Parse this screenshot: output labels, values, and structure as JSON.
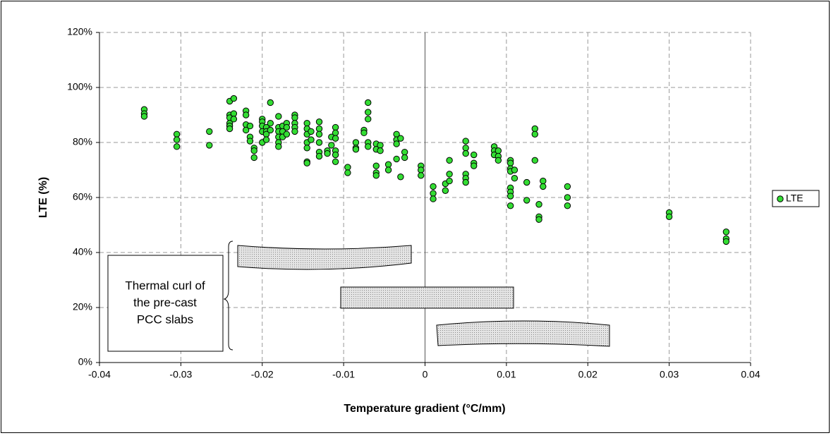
{
  "chart_data": {
    "type": "scatter",
    "x_label": "Temperature gradient (°C/mm)",
    "y_label": "LTE (%)",
    "annotation": [
      "Thermal curl of",
      "the pre-cast",
      "PCC slabs"
    ],
    "xlim": [
      -0.04,
      0.04
    ],
    "xticks": [
      -0.04,
      -0.03,
      -0.02,
      -0.01,
      0,
      0.01,
      0.02,
      0.03,
      0.04
    ],
    "ylim": [
      0,
      120
    ],
    "yticks": [
      {
        "value": 0,
        "label": "0%"
      },
      {
        "value": 20,
        "label": "20%"
      },
      {
        "value": 40,
        "label": "40%"
      },
      {
        "value": 60,
        "label": "60%"
      },
      {
        "value": 80,
        "label": "80%"
      },
      {
        "value": 100,
        "label": "100%"
      },
      {
        "value": 120,
        "label": "120%"
      }
    ],
    "grid": true,
    "legend": "right",
    "series": [
      {
        "name": "LTE",
        "color": "#33dd33",
        "x": [
          -0.0345,
          -0.0345,
          -0.0345,
          -0.0305,
          -0.0305,
          -0.0305,
          -0.0265,
          -0.0265,
          -0.024,
          -0.024,
          -0.024,
          -0.024,
          -0.024,
          -0.024,
          -0.0235,
          -0.0235,
          -0.0235,
          -0.022,
          -0.022,
          -0.022,
          -0.022,
          -0.0215,
          -0.0215,
          -0.0215,
          -0.021,
          -0.021,
          -0.021,
          -0.02,
          -0.02,
          -0.02,
          -0.02,
          -0.02,
          -0.0195,
          -0.0195,
          -0.0195,
          -0.0195,
          -0.019,
          -0.019,
          -0.019,
          -0.018,
          -0.018,
          -0.018,
          -0.018,
          -0.018,
          -0.018,
          -0.0175,
          -0.0175,
          -0.0175,
          -0.017,
          -0.017,
          -0.017,
          -0.016,
          -0.016,
          -0.016,
          -0.016,
          -0.016,
          -0.0145,
          -0.0145,
          -0.0145,
          -0.0145,
          -0.0145,
          -0.0145,
          -0.0145,
          -0.014,
          -0.014,
          -0.013,
          -0.013,
          -0.013,
          -0.013,
          -0.013,
          -0.013,
          -0.012,
          -0.012,
          -0.0115,
          -0.0115,
          -0.011,
          -0.011,
          -0.011,
          -0.011,
          -0.011,
          -0.011,
          -0.0095,
          -0.0095,
          -0.0085,
          -0.0085,
          -0.0085,
          -0.0075,
          -0.0075,
          -0.007,
          -0.007,
          -0.007,
          -0.007,
          -0.007,
          -0.006,
          -0.006,
          -0.006,
          -0.006,
          -0.006,
          -0.0055,
          -0.0055,
          -0.0045,
          -0.0045,
          -0.0035,
          -0.0035,
          -0.0035,
          -0.0035,
          -0.003,
          -0.003,
          -0.0025,
          -0.0025,
          -0.0005,
          -0.0005,
          -0.0005,
          0.001,
          0.001,
          0.001,
          0.0025,
          0.0025,
          0.003,
          0.003,
          0.003,
          0.005,
          0.005,
          0.005,
          0.005,
          0.005,
          0.005,
          0.006,
          0.006,
          0.006,
          0.0085,
          0.0085,
          0.0085,
          0.009,
          0.009,
          0.009,
          0.0105,
          0.0105,
          0.0105,
          0.0105,
          0.0105,
          0.0105,
          0.0105,
          0.0105,
          0.011,
          0.011,
          0.0125,
          0.0125,
          0.0135,
          0.0135,
          0.0135,
          0.014,
          0.014,
          0.014,
          0.0145,
          0.0145,
          0.0175,
          0.0175,
          0.0175,
          0.03,
          0.03,
          0.037,
          0.037,
          0.037
        ],
        "values": [
          92,
          90.5,
          89.5,
          83,
          81,
          78.5,
          84,
          79,
          95,
          90,
          89,
          87,
          86,
          85,
          96,
          90.5,
          88.5,
          91.5,
          90,
          86.5,
          84.5,
          86,
          82,
          80.5,
          78,
          77,
          74.5,
          88.5,
          87.5,
          86,
          84,
          80,
          85.5,
          84,
          83,
          81,
          94.5,
          87,
          84.5,
          89.5,
          85.5,
          84,
          82,
          80,
          78.5,
          86,
          84,
          82,
          87,
          85.5,
          83,
          90,
          89,
          87,
          85.5,
          84,
          87,
          85,
          83,
          80,
          78,
          73,
          72.5,
          84,
          81,
          87.5,
          85,
          83,
          80,
          76.5,
          75,
          77,
          76,
          82,
          79,
          85.5,
          83.5,
          81.5,
          77,
          75.5,
          73,
          71,
          69,
          80,
          78,
          77.5,
          84.5,
          83.5,
          94.5,
          91,
          88.5,
          80,
          78.5,
          79.5,
          77.5,
          71.5,
          69,
          68,
          79,
          77,
          72,
          70,
          83,
          81,
          79.5,
          74,
          81.5,
          67.5,
          76.5,
          74.5,
          71.5,
          70,
          68,
          64,
          61.5,
          59.5,
          65,
          62.5,
          73.5,
          68.5,
          66,
          80.5,
          78,
          76,
          68.5,
          67,
          65.5,
          75.5,
          72.5,
          71.5,
          78.5,
          77,
          75.5,
          77,
          75,
          73.5,
          73.5,
          72.5,
          70.5,
          69.5,
          63.5,
          62,
          60.5,
          57,
          70,
          67,
          65.5,
          59,
          85,
          83,
          73.5,
          57.5,
          53,
          52,
          66,
          64,
          64,
          60,
          57,
          54.5,
          53,
          47.5,
          45,
          44
        ]
      }
    ]
  }
}
